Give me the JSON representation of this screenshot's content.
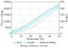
{
  "chart_data": {
    "type": "line",
    "xlabel": "Reduction (%)",
    "ylabel": "Force rolling",
    "y2label": "Torque",
    "annotation": "Rolling conditions: see box",
    "x": [
      0,
      5,
      10,
      15,
      20,
      25,
      30,
      35,
      40,
      45,
      50
    ],
    "series": [
      {
        "name": "force",
        "color": "#40c8e0",
        "line_style": "solid",
        "values": [
          2000,
          3000,
          4500,
          6500,
          9000,
          11500,
          14000,
          16500,
          19000,
          21000,
          23000
        ]
      },
      {
        "name": "couple",
        "color": "#40c8e0",
        "line_style": "dashed",
        "values": [
          1000,
          1800,
          3000,
          4800,
          7000,
          9500,
          12000,
          14500,
          17000,
          19500,
          22000
        ]
      },
      {
        "name": "forward sliding",
        "color": "#40c8e0",
        "line_style": "dotted",
        "values": [
          500,
          1000,
          1800,
          3000,
          4500,
          6500,
          9000,
          12000,
          15000,
          18000,
          21000
        ]
      }
    ],
    "xlim": [
      0,
      50
    ],
    "xticks": [
      0,
      10,
      20,
      30,
      40,
      50
    ],
    "ylim": [
      0,
      25000
    ],
    "yticks": [
      0,
      5000,
      10000,
      15000,
      20000,
      25000
    ],
    "y2lim": [
      0,
      250
    ],
    "y2ticks": [
      0,
      50,
      100,
      150,
      200,
      250
    ],
    "grid": true,
    "legend": "bottom"
  }
}
